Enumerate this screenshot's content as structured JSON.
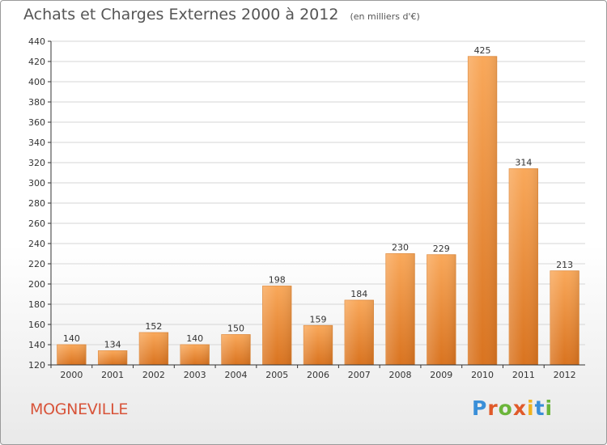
{
  "header": {
    "title": "Achats et Charges Externes 2000 à 2012",
    "subtitle": "(en milliers d'€)"
  },
  "footer": {
    "commune": "MOGNEVILLE",
    "logo_text": "Proxiti"
  },
  "colors": {
    "bar_light": "#f8a555",
    "bar_dark": "#d9731f",
    "grid": "#d6d6d6",
    "axis": "#333333",
    "commune": "#d8543a"
  },
  "chart_data": {
    "type": "bar",
    "categories": [
      "2000",
      "2001",
      "2002",
      "2003",
      "2004",
      "2005",
      "2006",
      "2007",
      "2008",
      "2009",
      "2010",
      "2011",
      "2012"
    ],
    "values": [
      140,
      134,
      152,
      140,
      150,
      198,
      159,
      184,
      230,
      229,
      425,
      314,
      213
    ],
    "ylim": [
      120,
      440
    ],
    "yticks": [
      120,
      140,
      160,
      180,
      200,
      220,
      240,
      260,
      280,
      300,
      320,
      340,
      360,
      380,
      400,
      420,
      440
    ],
    "grid": true,
    "data_labels": true
  }
}
